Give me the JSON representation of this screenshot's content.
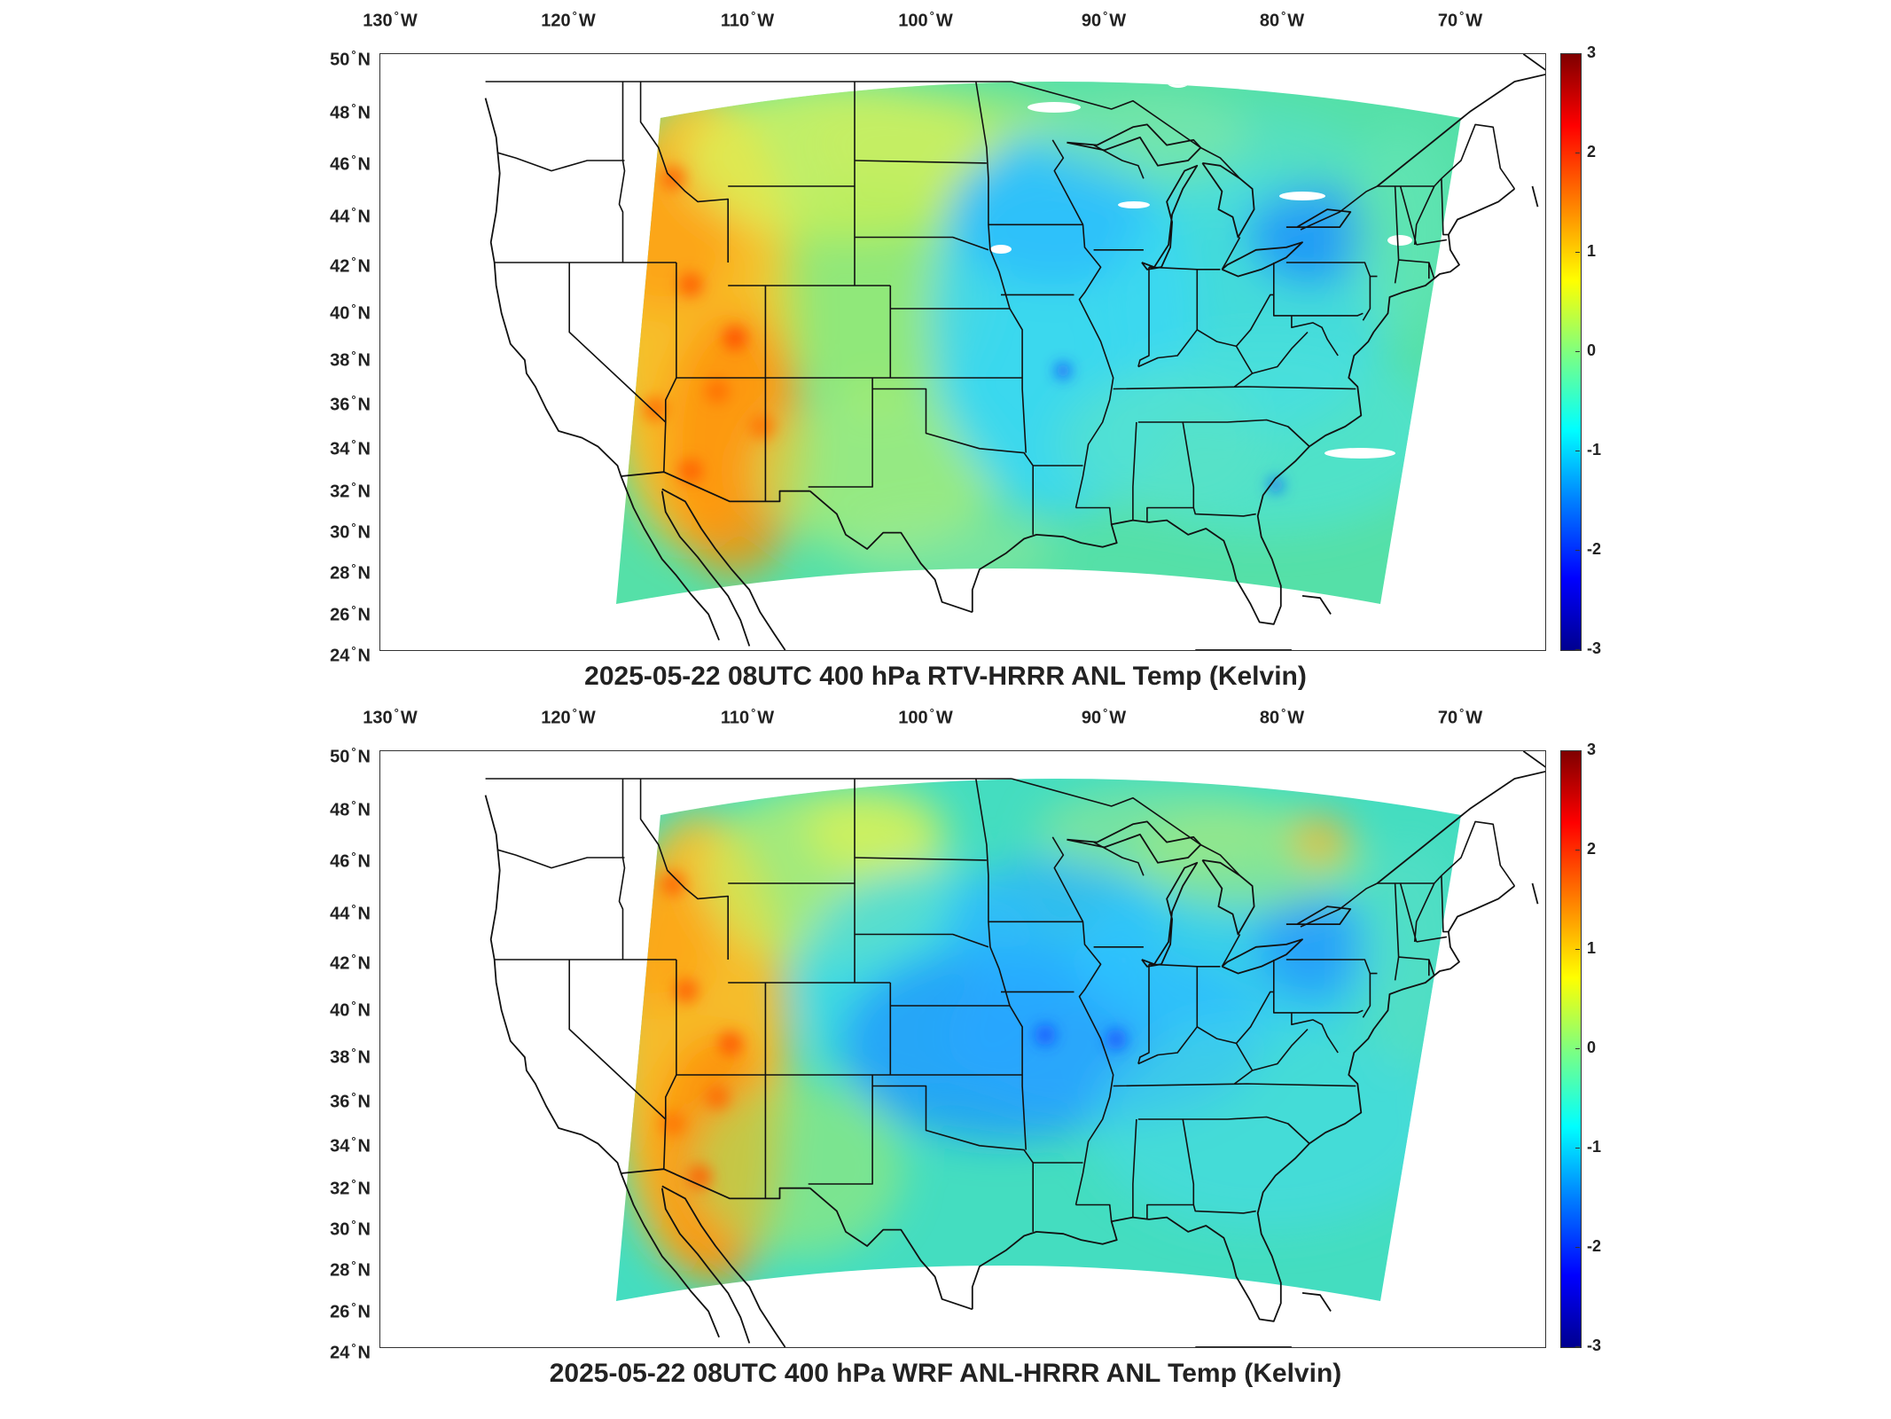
{
  "colors": {
    "jet": [
      "#00008f",
      "#0000ff",
      "#007fff",
      "#00ffff",
      "#7fff7f",
      "#ffff00",
      "#ff7f00",
      "#ff0000",
      "#7f0000"
    ],
    "state_lines": "#111111"
  },
  "axes": {
    "lon_labels": [
      {
        "deg": "130",
        "hem": "W"
      },
      {
        "deg": "120",
        "hem": "W"
      },
      {
        "deg": "110",
        "hem": "W"
      },
      {
        "deg": "100",
        "hem": "W"
      },
      {
        "deg": "90",
        "hem": "W"
      },
      {
        "deg": "80",
        "hem": "W"
      },
      {
        "deg": "70",
        "hem": "W"
      }
    ],
    "lat_labels": [
      {
        "deg": "50",
        "hem": "N"
      },
      {
        "deg": "48",
        "hem": "N"
      },
      {
        "deg": "46",
        "hem": "N"
      },
      {
        "deg": "44",
        "hem": "N"
      },
      {
        "deg": "42",
        "hem": "N"
      },
      {
        "deg": "40",
        "hem": "N"
      },
      {
        "deg": "38",
        "hem": "N"
      },
      {
        "deg": "36",
        "hem": "N"
      },
      {
        "deg": "34",
        "hem": "N"
      },
      {
        "deg": "32",
        "hem": "N"
      },
      {
        "deg": "30",
        "hem": "N"
      },
      {
        "deg": "28",
        "hem": "N"
      },
      {
        "deg": "26",
        "hem": "N"
      },
      {
        "deg": "24",
        "hem": "N"
      }
    ]
  },
  "colorbar": {
    "min": -3,
    "max": 3,
    "ticks": [
      "3",
      "2",
      "1",
      "0",
      "-1",
      "-2",
      "-3"
    ]
  },
  "panels": [
    {
      "title": "2025-05-22 08UTC 400 hPa RTV-HRRR ANL Temp (Kelvin)",
      "variant": "rtv"
    },
    {
      "title": "2025-05-22 08UTC 400 hPa WRF ANL-HRRR ANL Temp (Kelvin)",
      "variant": "wrf"
    }
  ]
}
